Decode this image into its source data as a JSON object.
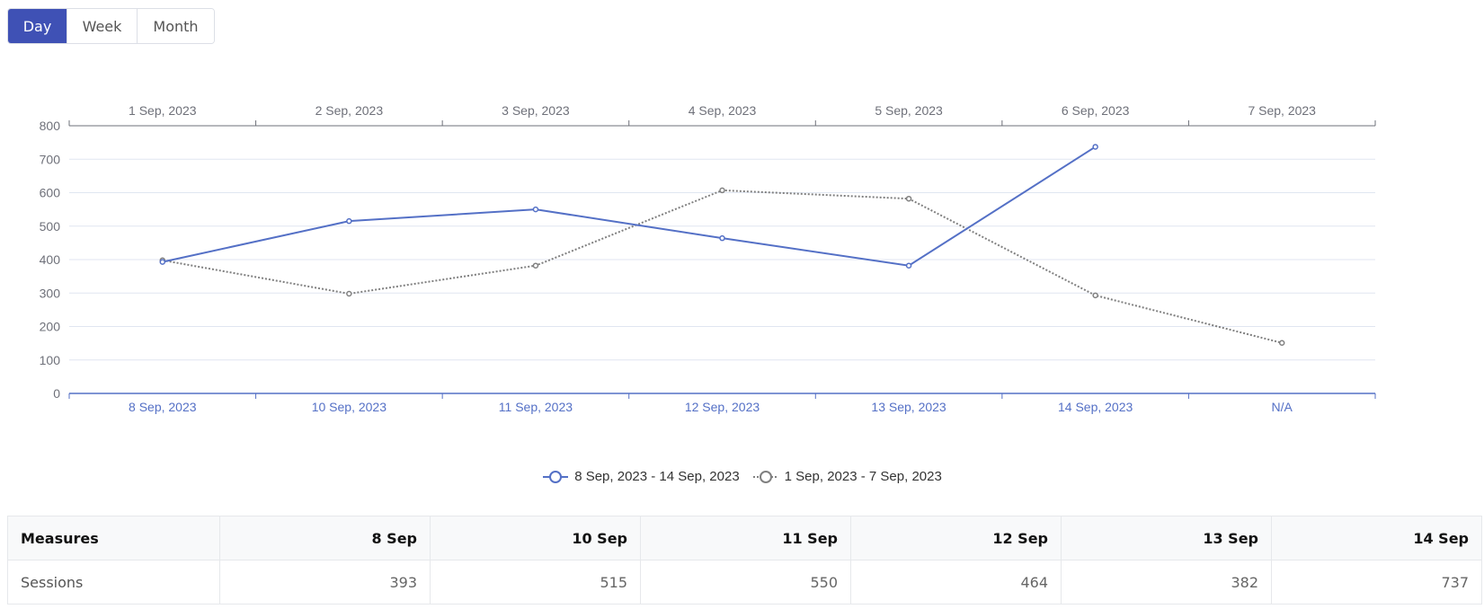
{
  "range_buttons": [
    {
      "label": "Day",
      "active": true
    },
    {
      "label": "Week",
      "active": false
    },
    {
      "label": "Month",
      "active": false
    }
  ],
  "chart_data": {
    "type": "line",
    "top_axis_labels": [
      "1 Sep, 2023",
      "2 Sep, 2023",
      "3 Sep, 2023",
      "4 Sep, 2023",
      "5 Sep, 2023",
      "6 Sep, 2023",
      "7 Sep, 2023"
    ],
    "bottom_axis_labels": [
      "8 Sep, 2023",
      "10 Sep, 2023",
      "11 Sep, 2023",
      "12 Sep, 2023",
      "13 Sep, 2023",
      "14 Sep, 2023",
      "N/A"
    ],
    "ylim": [
      0,
      800
    ],
    "yticks": [
      0,
      100,
      200,
      300,
      400,
      500,
      600,
      700,
      800
    ],
    "grid": true,
    "legend_position": "bottom",
    "series": [
      {
        "name": "8 Sep, 2023 - 14 Sep, 2023",
        "values": [
          393,
          515,
          550,
          464,
          382,
          737,
          null
        ],
        "color": "#5470c6",
        "style": "solid"
      },
      {
        "name": "1 Sep, 2023 - 7 Sep, 2023",
        "values": [
          398,
          298,
          382,
          607,
          582,
          293,
          151
        ],
        "color": "#808080",
        "style": "dotted"
      }
    ]
  },
  "table": {
    "headers": [
      "Measures",
      "8 Sep",
      "10 Sep",
      "11 Sep",
      "12 Sep",
      "13 Sep",
      "14 Sep"
    ],
    "rows": [
      {
        "cells": [
          "Sessions",
          "393",
          "515",
          "550",
          "464",
          "382",
          "737"
        ]
      }
    ]
  }
}
